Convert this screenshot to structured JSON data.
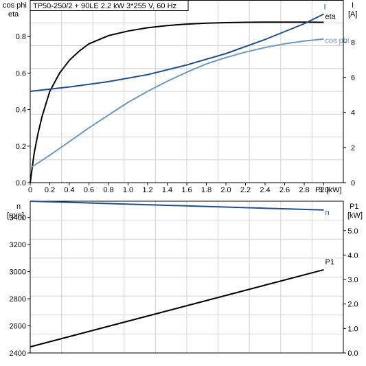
{
  "chart_data": [
    {
      "type": "line",
      "title": "TP50-250/2 + 90LE   2.2 kW   3*255 V, 60 Hz",
      "xlabel": "P2 [kW]",
      "x_ticks": [
        "0",
        "0.2",
        "0.4",
        "0.6",
        "0.8",
        "1.0",
        "1.2",
        "1.4",
        "1.6",
        "1.8",
        "2.0",
        "2.2",
        "2.4",
        "2.6",
        "2.8",
        "3.0"
      ],
      "xlim": [
        0,
        3.2
      ],
      "ylabel_left": [
        "cos phi",
        "eta"
      ],
      "ylim_left": [
        0,
        1.0
      ],
      "y_ticks_left": [
        "0.0",
        "0.2",
        "0.4",
        "0.6",
        "0.8"
      ],
      "ylabel_right": [
        "I",
        "[A]"
      ],
      "ylim_right": [
        0,
        10.4
      ],
      "y_ticks_right": [
        "0",
        "2",
        "4",
        "6",
        "8"
      ],
      "grid": true,
      "series": [
        {
          "name": "eta",
          "axis": "left",
          "color": "#000000",
          "x": [
            0,
            0.04,
            0.08,
            0.12,
            0.16,
            0.2,
            0.3,
            0.4,
            0.5,
            0.6,
            0.8,
            1.0,
            1.2,
            1.4,
            1.6,
            1.8,
            2.0,
            2.2,
            2.4,
            2.6,
            2.8,
            3.0
          ],
          "y": [
            0,
            0.16,
            0.27,
            0.36,
            0.43,
            0.5,
            0.6,
            0.67,
            0.72,
            0.76,
            0.805,
            0.83,
            0.848,
            0.86,
            0.868,
            0.873,
            0.876,
            0.878,
            0.879,
            0.879,
            0.879,
            0.878
          ]
        },
        {
          "name": "I",
          "axis": "right",
          "color": "#1f4e8c",
          "x": [
            0,
            0.4,
            0.8,
            1.2,
            1.6,
            2.0,
            2.4,
            2.8,
            3.0
          ],
          "y": [
            5.2,
            5.45,
            5.75,
            6.15,
            6.7,
            7.35,
            8.15,
            9.05,
            9.6
          ]
        },
        {
          "name": "cos phi",
          "axis": "left",
          "color": "#6b98c0",
          "x": [
            0,
            0.2,
            0.4,
            0.6,
            0.8,
            1.0,
            1.2,
            1.4,
            1.6,
            1.8,
            2.0,
            2.2,
            2.4,
            2.6,
            2.8,
            3.0
          ],
          "y": [
            0.08,
            0.15,
            0.225,
            0.3,
            0.37,
            0.44,
            0.5,
            0.555,
            0.605,
            0.65,
            0.685,
            0.715,
            0.74,
            0.76,
            0.775,
            0.787
          ]
        }
      ]
    },
    {
      "type": "line",
      "xlim": [
        0,
        3.2
      ],
      "ylabel_left": [
        "n",
        "[rpm]"
      ],
      "ylim_left": [
        2400,
        3520
      ],
      "y_ticks_left": [
        "2400",
        "2600",
        "2800",
        "3000",
        "3200",
        "3400"
      ],
      "ylabel_right": [
        "P1",
        "[kW]"
      ],
      "ylim_right": [
        0,
        6.2
      ],
      "y_ticks_right": [
        "0.0",
        "1.0",
        "2.0",
        "3.0",
        "4.0",
        "5.0"
      ],
      "grid": true,
      "series": [
        {
          "name": "n",
          "axis": "left",
          "color": "#1f4e8c",
          "x": [
            0,
            3.0
          ],
          "y": [
            3520,
            3455
          ]
        },
        {
          "name": "P1",
          "axis": "right",
          "color": "#000000",
          "x": [
            0,
            3.0
          ],
          "y": [
            0.25,
            3.4
          ]
        }
      ]
    }
  ]
}
